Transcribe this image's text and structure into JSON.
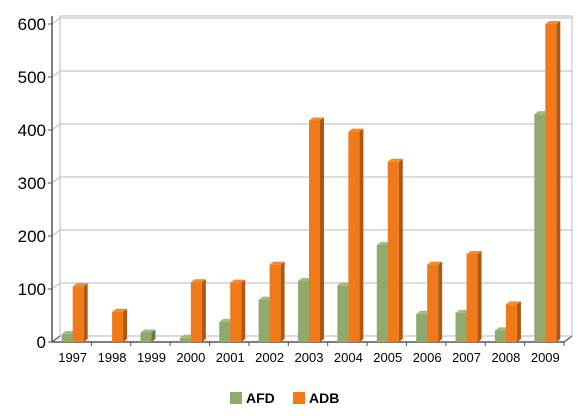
{
  "chart_data": {
    "type": "bar",
    "categories": [
      "1997",
      "1998",
      "1999",
      "2000",
      "2001",
      "2002",
      "2003",
      "2004",
      "2005",
      "2006",
      "2007",
      "2008",
      "2009"
    ],
    "series": [
      {
        "name": "AFD",
        "color": "#8faa6c",
        "values": [
          15,
          0,
          18,
          8,
          38,
          80,
          115,
          107,
          183,
          53,
          55,
          22,
          430
        ]
      },
      {
        "name": "ADB",
        "color": "#f07a1a",
        "values": [
          105,
          57,
          0,
          113,
          112,
          146,
          418,
          397,
          340,
          146,
          166,
          71,
          600
        ]
      }
    ],
    "y_ticks": [
      "0",
      "100",
      "200",
      "300",
      "400",
      "500",
      "600"
    ],
    "ylim": [
      0,
      600
    ],
    "grid": true,
    "legend_position": "bottom-center"
  }
}
